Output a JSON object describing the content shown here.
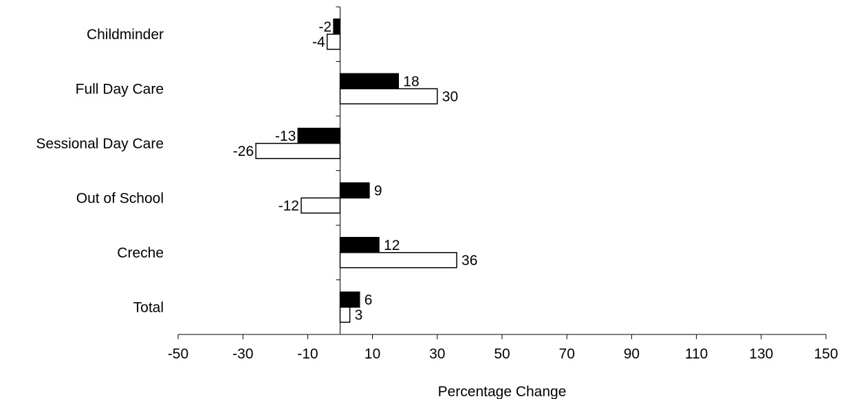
{
  "chart_data": {
    "type": "bar",
    "orientation": "horizontal",
    "title": "",
    "xlabel": "Percentage Change",
    "ylabel": "",
    "xlim": [
      -50,
      150
    ],
    "x_ticks": [
      -50,
      -30,
      -10,
      10,
      30,
      50,
      70,
      90,
      110,
      130,
      150
    ],
    "grid": false,
    "legend": "none",
    "categories": [
      "Childminder",
      "Full Day Care",
      "Sessional Day Care",
      "Out of School",
      "Creche",
      "Total"
    ],
    "series": [
      {
        "values": [
          -2,
          18,
          -13,
          9,
          12,
          6
        ],
        "color": "#000000"
      },
      {
        "values": [
          -4,
          30,
          -26,
          -12,
          36,
          3
        ],
        "color": "#ffffff"
      }
    ],
    "data_labels": [
      [
        "-2",
        "18",
        "-13",
        "9",
        "12",
        "6"
      ],
      [
        "-4",
        "30",
        "-26",
        "-12",
        "36",
        "3"
      ]
    ]
  }
}
